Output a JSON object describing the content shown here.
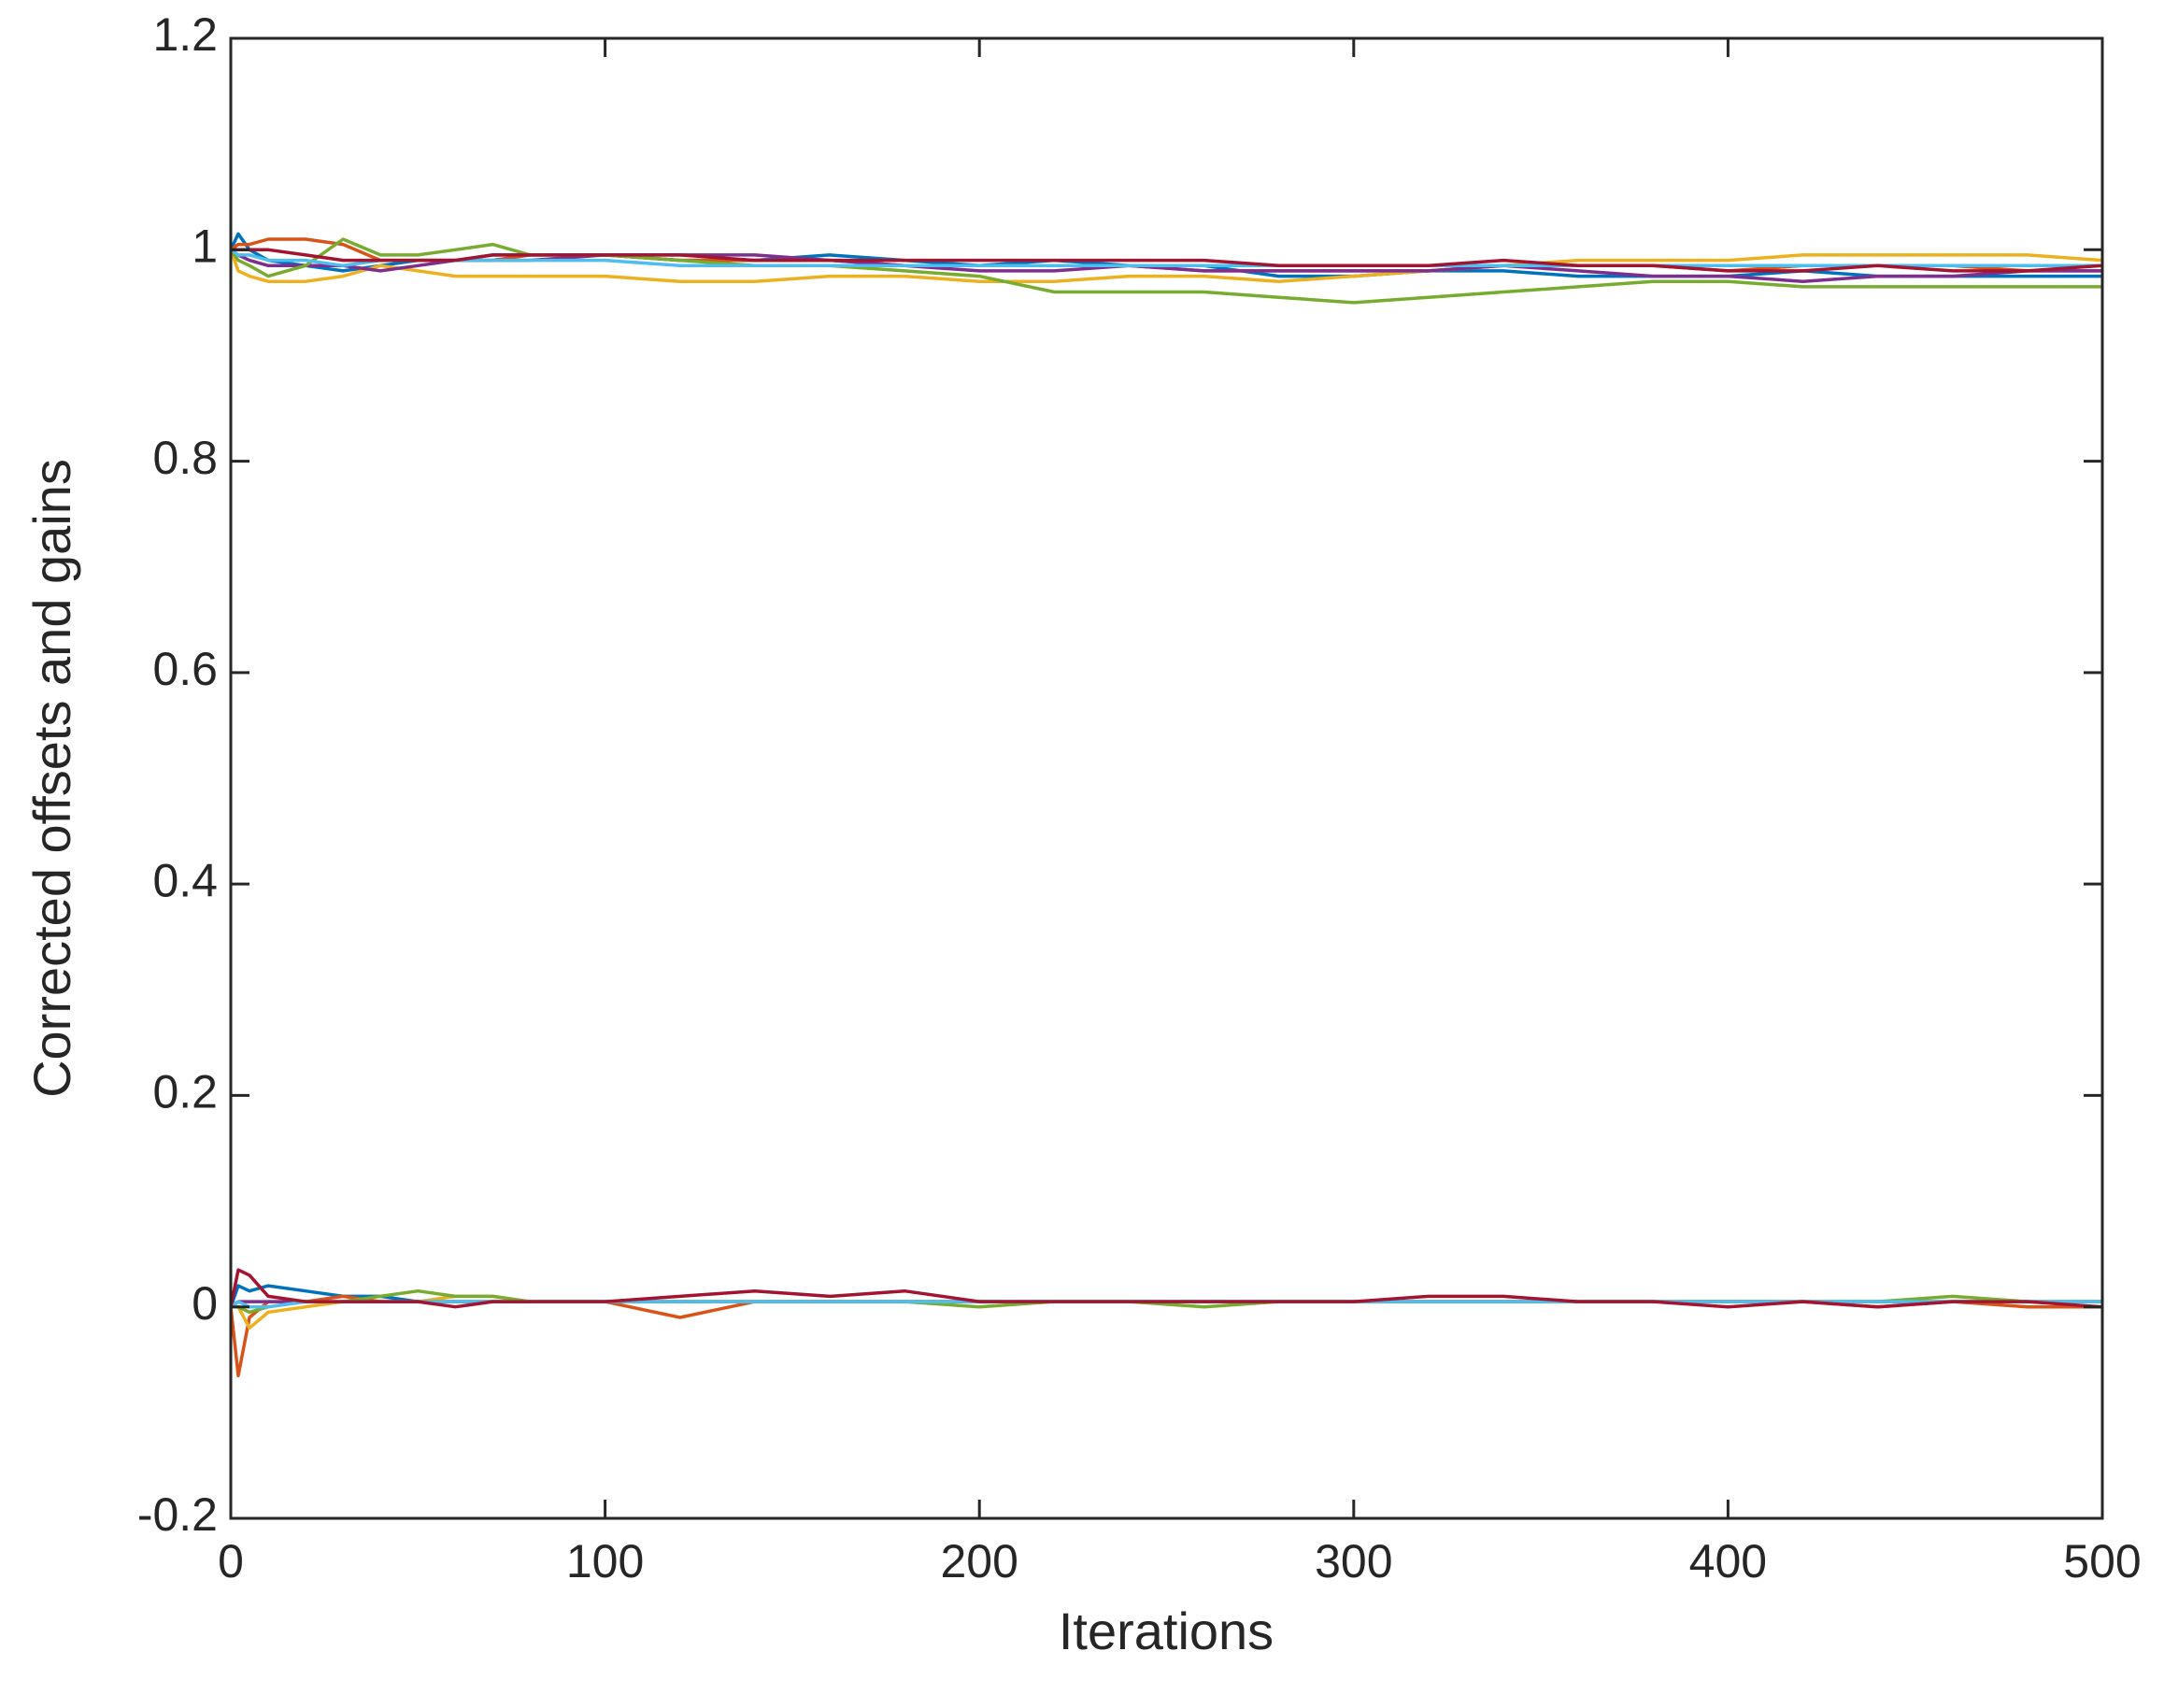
{
  "chart_data": {
    "type": "line",
    "x_label": "Iterations",
    "y_label": "Corrected offsets and gains",
    "x": [
      0,
      2,
      5,
      10,
      20,
      30,
      40,
      50,
      60,
      70,
      80,
      100,
      120,
      140,
      160,
      180,
      200,
      220,
      240,
      260,
      280,
      300,
      320,
      340,
      360,
      380,
      400,
      420,
      440,
      460,
      480,
      500
    ],
    "series": [
      {
        "color": "#0072BD",
        "values": [
          1,
          1.015,
          1.0,
          0.99,
          0.985,
          0.98,
          0.985,
          0.99,
          0.99,
          0.995,
          0.995,
          0.995,
          0.99,
          0.99,
          0.995,
          0.99,
          0.985,
          0.99,
          0.985,
          0.985,
          0.975,
          0.975,
          0.98,
          0.98,
          0.975,
          0.975,
          0.975,
          0.98,
          0.975,
          0.975,
          0.975,
          0.975
        ]
      },
      {
        "color": "#D95319",
        "values": [
          1,
          1.005,
          1.005,
          1.01,
          1.01,
          1.005,
          0.99,
          0.99,
          0.99,
          0.99,
          0.995,
          0.995,
          0.99,
          0.99,
          0.99,
          0.985,
          0.985,
          0.985,
          0.985,
          0.98,
          0.98,
          0.98,
          0.98,
          0.985,
          0.985,
          0.985,
          0.98,
          0.985,
          0.985,
          0.985,
          0.98,
          0.98
        ]
      },
      {
        "color": "#EDB120",
        "values": [
          1,
          0.98,
          0.975,
          0.97,
          0.97,
          0.975,
          0.985,
          0.98,
          0.975,
          0.975,
          0.975,
          0.975,
          0.97,
          0.97,
          0.975,
          0.975,
          0.97,
          0.97,
          0.975,
          0.975,
          0.97,
          0.975,
          0.98,
          0.985,
          0.99,
          0.99,
          0.99,
          0.995,
          0.995,
          0.995,
          0.995,
          0.99
        ]
      },
      {
        "color": "#7E2F8E",
        "values": [
          1,
          0.995,
          0.99,
          0.985,
          0.985,
          0.985,
          0.98,
          0.985,
          0.99,
          0.99,
          0.99,
          0.995,
          0.995,
          0.995,
          0.99,
          0.985,
          0.98,
          0.98,
          0.985,
          0.98,
          0.98,
          0.98,
          0.98,
          0.985,
          0.98,
          0.975,
          0.975,
          0.97,
          0.975,
          0.975,
          0.98,
          0.98
        ]
      },
      {
        "color": "#77AC30",
        "values": [
          1,
          0.99,
          0.985,
          0.975,
          0.985,
          1.01,
          0.995,
          0.995,
          1.0,
          1.005,
          0.995,
          0.995,
          0.99,
          0.985,
          0.985,
          0.98,
          0.975,
          0.96,
          0.96,
          0.96,
          0.955,
          0.95,
          0.955,
          0.96,
          0.965,
          0.97,
          0.97,
          0.965,
          0.965,
          0.965,
          0.965,
          0.965
        ]
      },
      {
        "color": "#4DBEEE",
        "values": [
          1,
          0.995,
          0.995,
          0.99,
          0.99,
          0.985,
          0.99,
          0.99,
          0.99,
          0.99,
          0.99,
          0.99,
          0.985,
          0.985,
          0.985,
          0.985,
          0.985,
          0.985,
          0.985,
          0.985,
          0.985,
          0.985,
          0.985,
          0.985,
          0.985,
          0.985,
          0.985,
          0.985,
          0.985,
          0.985,
          0.985,
          0.985
        ]
      },
      {
        "color": "#A2142F",
        "values": [
          1,
          1.0,
          1.0,
          1.0,
          0.995,
          0.99,
          0.99,
          0.99,
          0.99,
          0.995,
          0.995,
          0.995,
          0.995,
          0.99,
          0.99,
          0.99,
          0.99,
          0.99,
          0.99,
          0.99,
          0.985,
          0.985,
          0.985,
          0.99,
          0.985,
          0.985,
          0.98,
          0.98,
          0.985,
          0.98,
          0.98,
          0.985
        ]
      },
      {
        "color": "#0072BD",
        "values": [
          0,
          0.02,
          0.015,
          0.02,
          0.015,
          0.01,
          0.01,
          0.005,
          0.005,
          0.005,
          0.005,
          0.005,
          0.005,
          0.005,
          0.005,
          0.005,
          0.005,
          0.005,
          0.005,
          0.005,
          0.005,
          0.005,
          0.005,
          0.005,
          0.005,
          0.005,
          0.005,
          0.005,
          0.005,
          0.005,
          0.005,
          0.005
        ]
      },
      {
        "color": "#D95319",
        "values": [
          0,
          -0.065,
          -0.01,
          0.005,
          0.005,
          0.01,
          0.005,
          0.005,
          0.005,
          0.005,
          0.005,
          0.005,
          -0.01,
          0.005,
          0.005,
          0.005,
          0.005,
          0.005,
          0.005,
          0.005,
          0.005,
          0.005,
          0.005,
          0.005,
          0.005,
          0.005,
          0.005,
          0.005,
          0.0,
          0.005,
          0.0,
          0.0
        ]
      },
      {
        "color": "#EDB120",
        "values": [
          0,
          0.0,
          -0.02,
          -0.005,
          0.0,
          0.005,
          0.005,
          0.005,
          0.01,
          0.01,
          0.005,
          0.005,
          0.005,
          0.005,
          0.005,
          0.005,
          0.005,
          0.005,
          0.005,
          0.005,
          0.005,
          0.005,
          0.005,
          0.005,
          0.005,
          0.005,
          0.005,
          0.005,
          0.005,
          0.005,
          0.005,
          0.005
        ]
      },
      {
        "color": "#7E2F8E",
        "values": [
          0,
          0.005,
          0.005,
          0.005,
          0.005,
          0.005,
          0.005,
          0.005,
          0.005,
          0.005,
          0.005,
          0.005,
          0.005,
          0.005,
          0.005,
          0.005,
          0.005,
          0.005,
          0.005,
          0.005,
          0.005,
          0.005,
          0.005,
          0.005,
          0.005,
          0.005,
          0.005,
          0.005,
          0.005,
          0.005,
          0.005,
          0.005
        ]
      },
      {
        "color": "#77AC30",
        "values": [
          0,
          0.0,
          -0.005,
          0.0,
          0.005,
          0.005,
          0.01,
          0.015,
          0.01,
          0.01,
          0.005,
          0.005,
          0.005,
          0.005,
          0.005,
          0.005,
          0.0,
          0.005,
          0.005,
          0.0,
          0.005,
          0.005,
          0.005,
          0.005,
          0.005,
          0.005,
          0.005,
          0.005,
          0.005,
          0.01,
          0.005,
          0.005
        ]
      },
      {
        "color": "#4DBEEE",
        "values": [
          0,
          0.005,
          0.0,
          0.0,
          0.005,
          0.005,
          0.005,
          0.005,
          0.005,
          0.005,
          0.005,
          0.005,
          0.005,
          0.005,
          0.005,
          0.005,
          0.005,
          0.005,
          0.005,
          0.005,
          0.005,
          0.005,
          0.005,
          0.005,
          0.005,
          0.005,
          0.005,
          0.005,
          0.005,
          0.005,
          0.005,
          0.005
        ]
      },
      {
        "color": "#A2142F",
        "values": [
          0,
          0.035,
          0.03,
          0.01,
          0.005,
          0.005,
          0.005,
          0.005,
          0.0,
          0.005,
          0.005,
          0.005,
          0.01,
          0.015,
          0.01,
          0.015,
          0.005,
          0.005,
          0.005,
          0.005,
          0.005,
          0.005,
          0.01,
          0.01,
          0.005,
          0.005,
          0.0,
          0.005,
          0.0,
          0.005,
          0.005,
          0.0
        ]
      }
    ],
    "xlim": [
      0,
      500
    ],
    "xticks": [
      0,
      100,
      200,
      300,
      400,
      500
    ],
    "ylim": [
      -0.2,
      1.2
    ],
    "yticks": [
      -0.2,
      0,
      0.2,
      0.4,
      0.6,
      0.8,
      1,
      1.2
    ],
    "grid": false
  }
}
